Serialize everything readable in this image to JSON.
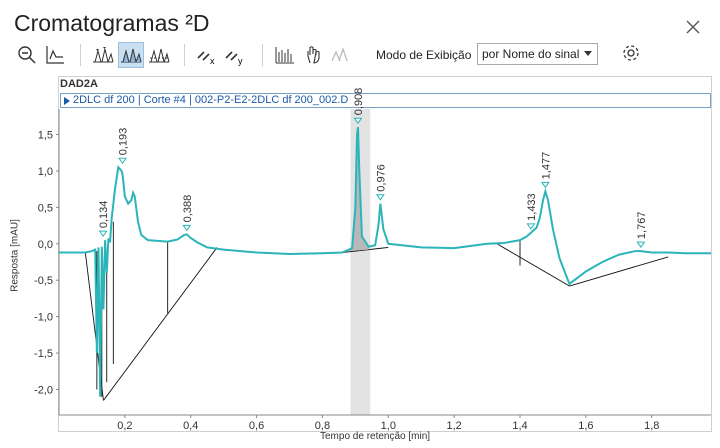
{
  "window": {
    "title": "Cromatogramas ²D"
  },
  "toolbar": {
    "icons": [
      "zoom-out-icon",
      "peak-edit-icon",
      "peaks-view-1-icon",
      "peaks-view-2-icon",
      "peaks-view-3-icon",
      "unlink-x-icon",
      "unlink-y-icon",
      "signal-bars-icon",
      "hand-pan-icon",
      "overlay-peaks-icon"
    ],
    "active_icon": "peaks-view-2-icon",
    "mode_label": "Modo de Exibição",
    "mode_value": "por Nome do sinal",
    "accent": "#2bb5b8"
  },
  "plot": {
    "title": "DAD2A",
    "signal": "2DLC df 200 | Corte #4 | 002-P2-E2-2DLC df 200_002.D"
  },
  "chart_data": {
    "type": "line",
    "xlabel": "Tempo de retenção [min]",
    "ylabel": "Resposta [mAU]",
    "xlim": [
      0.0,
      1.98
    ],
    "ylim": [
      -2.35,
      1.85
    ],
    "xticks": [
      0.2,
      0.4,
      0.6,
      0.8,
      1.0,
      1.2,
      1.4,
      1.6,
      1.8
    ],
    "yticks": [
      1.5,
      1.0,
      0.5,
      0.0,
      -0.5,
      -1.0,
      -1.5,
      -2.0
    ],
    "xtick_labels": [
      "0,2",
      "0,4",
      "0,6",
      "0,8",
      "1,0",
      "1,2",
      "1,4",
      "1,6",
      "1,8"
    ],
    "ytick_labels": [
      "1,5",
      "1,0",
      "0,5",
      "0,0",
      "-0,5",
      "-1,0",
      "-1,5",
      "-2,0"
    ],
    "highlight_range": [
      0.885,
      0.945
    ],
    "series_color": "#2bb5b8",
    "series": [
      {
        "x": [
          0.0,
          0.08,
          0.1,
          0.11,
          0.115,
          0.12,
          0.125,
          0.13,
          0.135,
          0.14,
          0.145,
          0.15,
          0.155,
          0.16,
          0.17,
          0.18,
          0.19,
          0.193,
          0.2,
          0.21,
          0.22,
          0.225,
          0.23,
          0.24,
          0.25,
          0.27,
          0.3,
          0.33,
          0.36,
          0.38,
          0.388,
          0.4,
          0.42,
          0.45,
          0.5,
          0.6,
          0.7,
          0.8,
          0.86,
          0.89,
          0.9,
          0.905,
          0.908,
          0.912,
          0.92,
          0.94,
          0.96,
          0.97,
          0.976,
          0.985,
          1.0,
          1.1,
          1.2,
          1.3,
          1.35,
          1.4,
          1.42,
          1.433,
          1.44,
          1.45,
          1.46,
          1.47,
          1.477,
          1.485,
          1.5,
          1.52,
          1.55,
          1.6,
          1.65,
          1.7,
          1.75,
          1.767,
          1.8,
          1.85,
          1.9,
          1.98
        ],
        "y": [
          -0.12,
          -0.12,
          -0.1,
          -0.08,
          -1.5,
          -0.05,
          -2.1,
          -0.04,
          -0.9,
          0.05,
          -0.4,
          0.07,
          0.02,
          0.35,
          0.75,
          1.05,
          1.0,
          0.95,
          0.65,
          0.55,
          0.6,
          0.7,
          0.65,
          0.3,
          0.12,
          0.05,
          0.04,
          0.03,
          0.06,
          0.12,
          0.13,
          0.08,
          0.02,
          -0.05,
          -0.08,
          -0.12,
          -0.14,
          -0.13,
          -0.12,
          -0.06,
          0.5,
          1.5,
          1.6,
          1.0,
          0.1,
          -0.04,
          -0.02,
          0.25,
          0.55,
          0.2,
          0.0,
          -0.05,
          -0.06,
          0.0,
          0.01,
          0.05,
          0.1,
          0.15,
          0.18,
          0.22,
          0.35,
          0.6,
          0.72,
          0.6,
          0.2,
          -0.2,
          -0.55,
          -0.38,
          -0.25,
          -0.15,
          -0.1,
          -0.1,
          -0.12,
          -0.12,
          -0.13,
          -0.13
        ]
      }
    ],
    "peaks": [
      {
        "label": "0,134",
        "x": 0.134,
        "y": 0.05
      },
      {
        "label": "0,193",
        "x": 0.193,
        "y": 1.05
      },
      {
        "label": "0,388",
        "x": 0.388,
        "y": 0.13
      },
      {
        "label": "0,908",
        "x": 0.908,
        "y": 1.6
      },
      {
        "label": "0,976",
        "x": 0.976,
        "y": 0.55
      },
      {
        "label": "1,433",
        "x": 1.433,
        "y": 0.15
      },
      {
        "label": "1,477",
        "x": 1.477,
        "y": 0.72
      },
      {
        "label": "1,767",
        "x": 1.767,
        "y": -0.1
      }
    ]
  }
}
